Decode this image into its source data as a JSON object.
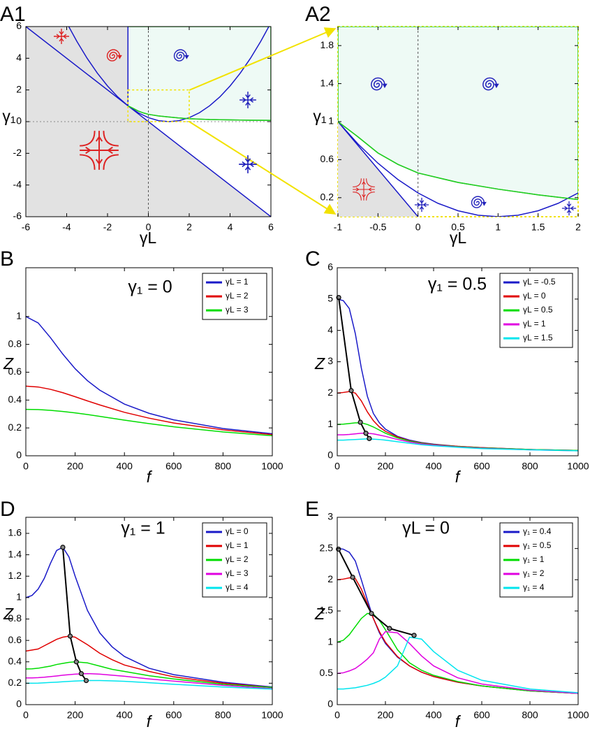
{
  "chart_data": [
    {
      "type": "line",
      "panel_label": "A1",
      "xlabel": "γL",
      "ylabel": "γ₁",
      "xlim": [
        -6,
        6
      ],
      "ylim": [
        -6,
        6
      ],
      "xticks": [
        -6,
        -4,
        -2,
        0,
        2,
        4,
        6
      ],
      "yticks": [
        -6,
        -4,
        -2,
        0,
        2,
        4,
        6
      ],
      "regions": true,
      "fill_colors": [
        "#e2e2e2",
        "#eefaf5"
      ],
      "zero_lines": true,
      "zoom_box_color": "#f2e200",
      "series": [
        {
          "color": "#1a1ac8",
          "x": [
            -6,
            6
          ],
          "values": [
            6,
            -6
          ]
        },
        {
          "color": "#1a1ac8",
          "x": [
            -1,
            -1
          ],
          "values": [
            1,
            6
          ]
        },
        {
          "color": "#1a1ac8",
          "x": [
            -3.9,
            -3.5,
            -3,
            -2.5,
            -2,
            -1.5,
            -1,
            -0.5,
            0,
            0.5,
            1,
            1.5,
            2,
            2.5,
            3,
            3.5,
            4,
            4.5,
            5,
            5.5,
            5.9
          ],
          "values": [
            6.0025,
            5.0625,
            4,
            3.0625,
            2.25,
            1.5625,
            1,
            0.5625,
            0.25,
            0.0625,
            0,
            0.0625,
            0.25,
            0.5625,
            1,
            1.5625,
            2.25,
            3.0625,
            4,
            5.0625,
            6.0025
          ]
        },
        {
          "color": "#22cc22",
          "x": [
            -1,
            -0.75,
            -0.5,
            -0.25,
            0,
            0.5,
            1,
            1.5,
            2,
            3,
            4,
            5,
            6
          ],
          "values": [
            1,
            0.84,
            0.67,
            0.55,
            0.46,
            0.36,
            0.29,
            0.23,
            0.18,
            0.13,
            0.11,
            0.09,
            0.08
          ]
        }
      ]
    },
    {
      "type": "line",
      "panel_label": "A2",
      "xlabel": "γL",
      "ylabel": "γ₁",
      "xlim": [
        -1,
        2
      ],
      "ylim": [
        0,
        2
      ],
      "xticks": [
        -1,
        -0.5,
        0,
        0.5,
        1,
        1.5,
        2
      ],
      "yticks": [
        0.2,
        0.6,
        1,
        1.4,
        1.8
      ],
      "regions": true,
      "fill_colors": [
        "#e2e2e2",
        "#eefaf5"
      ],
      "zero_lines": true,
      "frame_color": "#f2e200",
      "series": [
        {
          "color": "#1a1ac8",
          "x": [
            -1,
            0
          ],
          "values": [
            1,
            0
          ]
        },
        {
          "color": "#1a1ac8",
          "x": [
            -1,
            -0.75,
            -0.5,
            -0.25,
            0,
            0.25,
            0.5,
            0.75,
            1,
            1.25,
            1.5,
            1.75,
            2
          ],
          "values": [
            1,
            0.765625,
            0.5625,
            0.390625,
            0.25,
            0.140625,
            0.0625,
            0.015625,
            0,
            0.015625,
            0.0625,
            0.140625,
            0.25
          ]
        },
        {
          "color": "#22cc22",
          "x": [
            -1,
            -0.75,
            -0.5,
            -0.25,
            0,
            0.5,
            1,
            1.5,
            2
          ],
          "values": [
            1,
            0.84,
            0.67,
            0.55,
            0.46,
            0.36,
            0.29,
            0.23,
            0.18
          ]
        }
      ]
    },
    {
      "type": "line",
      "panel_label": "B",
      "title": "γ₁ = 0",
      "xlabel": "f",
      "ylabel": "Z",
      "xlim": [
        0,
        1000
      ],
      "ylim": [
        0,
        1.35
      ],
      "xticks": [
        0,
        200,
        400,
        600,
        800,
        1000
      ],
      "yticks": [
        0,
        0.2,
        0.4,
        0.6,
        0.8,
        1
      ],
      "legend": "upper right",
      "x": [
        0,
        50,
        100,
        150,
        200,
        250,
        300,
        400,
        500,
        600,
        800,
        1000
      ],
      "series": [
        {
          "name": "γL = 1",
          "color": "#1a1ac8",
          "values": [
            1,
            0.954,
            0.848,
            0.73,
            0.625,
            0.539,
            0.471,
            0.371,
            0.305,
            0.258,
            0.196,
            0.158
          ]
        },
        {
          "name": "γL = 2",
          "color": "#e00000",
          "values": [
            0.5,
            0.494,
            0.477,
            0.453,
            0.424,
            0.394,
            0.365,
            0.312,
            0.27,
            0.235,
            0.186,
            0.152
          ]
        },
        {
          "name": "γL = 3",
          "color": "#00dd00",
          "values": [
            0.333,
            0.332,
            0.326,
            0.318,
            0.308,
            0.296,
            0.283,
            0.256,
            0.231,
            0.208,
            0.171,
            0.144
          ]
        }
      ]
    },
    {
      "type": "line",
      "panel_label": "C",
      "title": "γ₁ = 0.5",
      "xlabel": "f",
      "ylabel": "Z",
      "xlim": [
        0,
        1000
      ],
      "ylim": [
        0,
        6
      ],
      "xticks": [
        0,
        200,
        400,
        600,
        800,
        1000
      ],
      "yticks": [
        0,
        1,
        2,
        3,
        4,
        5,
        6
      ],
      "legend": "upper right",
      "x": [
        0,
        25,
        50,
        75,
        100,
        125,
        150,
        175,
        200,
        250,
        300,
        350,
        400,
        500,
        600,
        800,
        1000
      ],
      "series": [
        {
          "name": "γL = -0.5",
          "color": "#1a1ac8",
          "values": [
            5.0,
            4.95,
            4.7,
            3.9,
            2.8,
            1.9,
            1.35,
            1.05,
            0.85,
            0.62,
            0.5,
            0.42,
            0.37,
            0.3,
            0.26,
            0.2,
            0.17
          ]
        },
        {
          "name": "γL = 0",
          "color": "#e00000",
          "values": [
            2.0,
            2.02,
            2.05,
            2.0,
            1.75,
            1.4,
            1.12,
            0.92,
            0.78,
            0.6,
            0.48,
            0.41,
            0.36,
            0.3,
            0.26,
            0.2,
            0.17
          ]
        },
        {
          "name": "γL = 0.5",
          "color": "#00dd00",
          "values": [
            1.0,
            1.01,
            1.03,
            1.05,
            1.05,
            1.0,
            0.92,
            0.82,
            0.72,
            0.57,
            0.47,
            0.4,
            0.35,
            0.29,
            0.25,
            0.2,
            0.17
          ]
        },
        {
          "name": "γL = 1",
          "color": "#e000e0",
          "values": [
            0.67,
            0.67,
            0.68,
            0.7,
            0.72,
            0.72,
            0.7,
            0.66,
            0.62,
            0.52,
            0.44,
            0.38,
            0.34,
            0.28,
            0.24,
            0.19,
            0.16
          ]
        },
        {
          "name": "γL = 1.5",
          "color": "#00e5ee",
          "values": [
            0.5,
            0.5,
            0.51,
            0.52,
            0.53,
            0.54,
            0.53,
            0.52,
            0.5,
            0.45,
            0.4,
            0.35,
            0.32,
            0.27,
            0.23,
            0.19,
            0.16
          ]
        }
      ],
      "peaks": {
        "color": "#000000",
        "x": [
          6,
          58,
          96,
          119,
          133
        ],
        "values": [
          5.05,
          2.08,
          1.07,
          0.72,
          0.55
        ]
      }
    },
    {
      "type": "line",
      "panel_label": "D",
      "title": "γ₁ = 1",
      "xlabel": "f",
      "ylabel": "Z",
      "xlim": [
        0,
        1000
      ],
      "ylim": [
        0,
        1.75
      ],
      "xticks": [
        0,
        200,
        400,
        600,
        800,
        1000
      ],
      "yticks": [
        0,
        0.2,
        0.4,
        0.6,
        0.8,
        1,
        1.2,
        1.4,
        1.6
      ],
      "legend": "upper right",
      "x": [
        0,
        25,
        50,
        75,
        100,
        125,
        150,
        175,
        200,
        250,
        300,
        350,
        400,
        500,
        600,
        800,
        1000
      ],
      "series": [
        {
          "name": "γL = 0",
          "color": "#1a1ac8",
          "values": [
            1.0,
            1.02,
            1.08,
            1.18,
            1.32,
            1.44,
            1.47,
            1.38,
            1.2,
            0.88,
            0.67,
            0.54,
            0.45,
            0.34,
            0.28,
            0.21,
            0.165
          ]
        },
        {
          "name": "γL = 1",
          "color": "#e00000",
          "values": [
            0.5,
            0.51,
            0.52,
            0.55,
            0.58,
            0.61,
            0.63,
            0.64,
            0.63,
            0.56,
            0.48,
            0.42,
            0.37,
            0.31,
            0.26,
            0.2,
            0.16
          ]
        },
        {
          "name": "γL = 2",
          "color": "#00dd00",
          "values": [
            0.333,
            0.335,
            0.34,
            0.35,
            0.36,
            0.375,
            0.385,
            0.395,
            0.4,
            0.39,
            0.36,
            0.33,
            0.31,
            0.27,
            0.24,
            0.19,
            0.16
          ]
        },
        {
          "name": "γL = 3",
          "color": "#e000e0",
          "values": [
            0.25,
            0.25,
            0.252,
            0.256,
            0.262,
            0.268,
            0.275,
            0.28,
            0.285,
            0.29,
            0.285,
            0.275,
            0.265,
            0.24,
            0.22,
            0.18,
            0.15
          ]
        },
        {
          "name": "γL = 4",
          "color": "#00e5ee",
          "values": [
            0.2,
            0.2,
            0.201,
            0.204,
            0.207,
            0.21,
            0.214,
            0.217,
            0.22,
            0.225,
            0.225,
            0.222,
            0.218,
            0.205,
            0.19,
            0.165,
            0.145
          ]
        }
      ],
      "peaks": {
        "color": "#000000",
        "x": [
          150,
          180,
          205,
          225,
          245
        ],
        "values": [
          1.47,
          0.64,
          0.4,
          0.29,
          0.225
        ]
      }
    },
    {
      "type": "line",
      "panel_label": "E",
      "title": "γL = 0",
      "xlabel": "f",
      "ylabel": "Z",
      "xlim": [
        0,
        1000
      ],
      "ylim": [
        0,
        3
      ],
      "xticks": [
        0,
        200,
        400,
        600,
        800,
        1000
      ],
      "yticks": [
        0,
        0.5,
        1,
        1.5,
        2,
        2.5,
        3
      ],
      "legend": "upper right",
      "x": [
        0,
        25,
        50,
        75,
        100,
        125,
        150,
        175,
        200,
        250,
        300,
        350,
        400,
        500,
        600,
        800,
        1000
      ],
      "series": [
        {
          "name": "γ₁ = 0.4",
          "color": "#1a1ac8",
          "values": [
            2.5,
            2.49,
            2.44,
            2.3,
            2.0,
            1.68,
            1.38,
            1.15,
            0.98,
            0.76,
            0.62,
            0.52,
            0.45,
            0.36,
            0.3,
            0.22,
            0.18
          ]
        },
        {
          "name": "γ₁ = 0.5",
          "color": "#e00000",
          "values": [
            2.0,
            2.01,
            2.03,
            2.02,
            1.85,
            1.62,
            1.38,
            1.17,
            1.0,
            0.77,
            0.62,
            0.52,
            0.45,
            0.36,
            0.3,
            0.22,
            0.18
          ]
        },
        {
          "name": "γ₁ = 1",
          "color": "#00dd00",
          "values": [
            1.0,
            1.03,
            1.12,
            1.25,
            1.38,
            1.46,
            1.45,
            1.35,
            1.2,
            0.88,
            0.67,
            0.55,
            0.47,
            0.37,
            0.3,
            0.22,
            0.18
          ]
        },
        {
          "name": "γ₁ = 2",
          "color": "#e000e0",
          "values": [
            0.5,
            0.51,
            0.54,
            0.58,
            0.65,
            0.73,
            0.83,
            1.05,
            1.17,
            1.15,
            0.98,
            0.78,
            0.62,
            0.43,
            0.33,
            0.23,
            0.18
          ]
        },
        {
          "name": "γ₁ = 4",
          "color": "#00e5ee",
          "values": [
            0.25,
            0.25,
            0.26,
            0.27,
            0.29,
            0.31,
            0.34,
            0.38,
            0.44,
            0.62,
            1.08,
            1.05,
            0.85,
            0.55,
            0.39,
            0.25,
            0.19
          ]
        }
      ],
      "peaks": {
        "color": "#000000",
        "x": [
          5,
          64,
          142,
          217,
          319
        ],
        "values": [
          2.49,
          2.04,
          1.46,
          1.22,
          1.11
        ]
      }
    }
  ]
}
